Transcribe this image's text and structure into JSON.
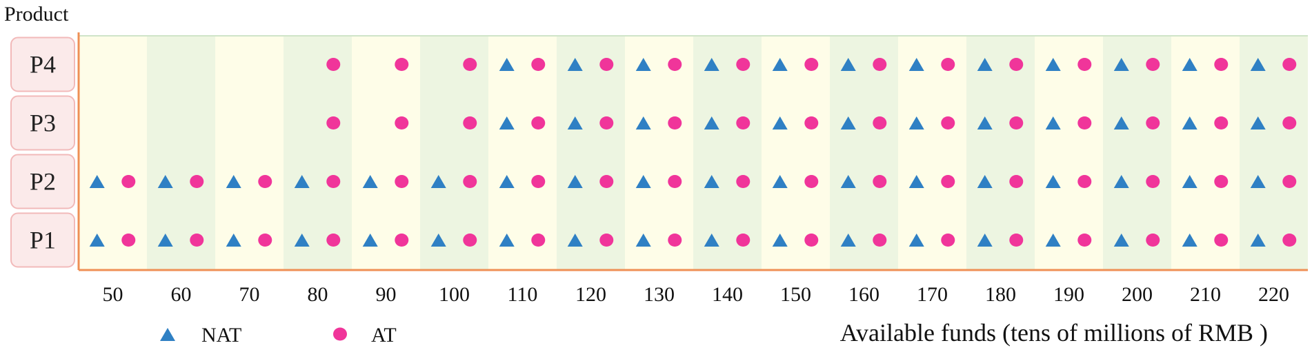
{
  "chart_data": {
    "type": "scatter",
    "ylabel": "Product",
    "xlabel": "Available funds (tens of millions of RMB )",
    "categories": [
      "P1",
      "P2",
      "P3",
      "P4"
    ],
    "x": [
      50,
      60,
      70,
      80,
      90,
      100,
      110,
      120,
      130,
      140,
      150,
      160,
      170,
      180,
      190,
      200,
      210,
      220
    ],
    "series": [
      {
        "name": "NAT",
        "marker": "triangle",
        "color": "#2f80c4",
        "points": {
          "P1": [
            50,
            60,
            70,
            80,
            90,
            100,
            110,
            120,
            130,
            140,
            150,
            160,
            170,
            180,
            190,
            200,
            210,
            220
          ],
          "P2": [
            50,
            60,
            70,
            80,
            90,
            100,
            110,
            120,
            130,
            140,
            150,
            160,
            170,
            180,
            190,
            200,
            210,
            220
          ],
          "P3": [
            110,
            120,
            130,
            140,
            150,
            160,
            170,
            180,
            190,
            200,
            210,
            220
          ],
          "P4": [
            110,
            120,
            130,
            140,
            150,
            160,
            170,
            180,
            190,
            200,
            210,
            220
          ]
        }
      },
      {
        "name": "AT",
        "marker": "circle",
        "color": "#f0359a",
        "points": {
          "P1": [
            50,
            60,
            70,
            80,
            90,
            100,
            110,
            120,
            130,
            140,
            150,
            160,
            170,
            180,
            190,
            200,
            210,
            220
          ],
          "P2": [
            50,
            60,
            70,
            80,
            90,
            100,
            110,
            120,
            130,
            140,
            150,
            160,
            170,
            180,
            190,
            200,
            210,
            220
          ],
          "P3": [
            80,
            90,
            100,
            110,
            120,
            130,
            140,
            150,
            160,
            170,
            180,
            190,
            200,
            210,
            220
          ],
          "P4": [
            80,
            90,
            100,
            110,
            120,
            130,
            140,
            150,
            160,
            170,
            180,
            190,
            200,
            210,
            220
          ]
        }
      }
    ],
    "legend_position": "bottom-left",
    "background_bands": [
      "#fefde8",
      "#edf5e1"
    ],
    "axis_color": "#ef8f55",
    "label_box_color": "#fbeaea"
  }
}
